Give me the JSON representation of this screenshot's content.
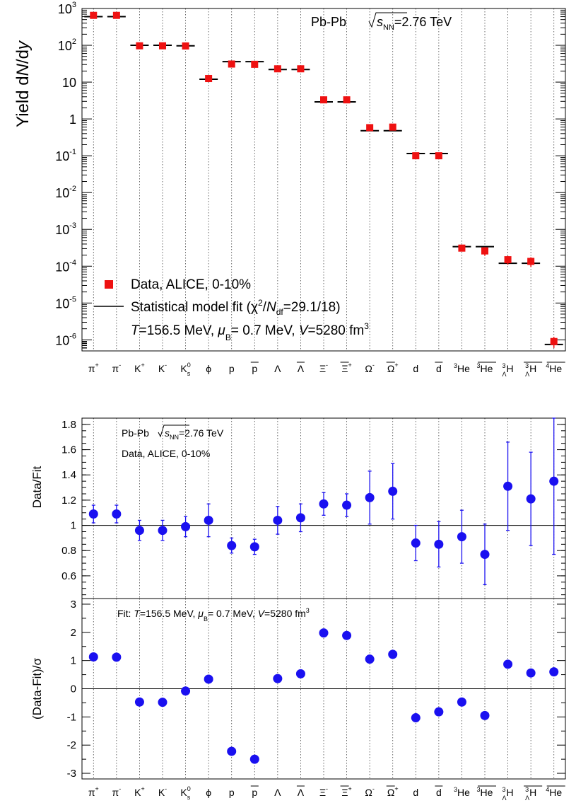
{
  "colors": {
    "data_red": "#ee1111",
    "data_blue": "#1a10f0",
    "axis": "#000000",
    "grid": "#444444"
  },
  "particles": [
    {
      "base": "π",
      "sup": "+",
      "bar": false
    },
    {
      "base": "π",
      "sup": "-",
      "bar": false
    },
    {
      "base": "K",
      "sup": "+",
      "bar": false
    },
    {
      "base": "K",
      "sup": "-",
      "bar": false
    },
    {
      "base": "K",
      "sub": "s",
      "sup": "0",
      "bar": false
    },
    {
      "base": "ϕ",
      "bar": false
    },
    {
      "base": "p",
      "bar": false
    },
    {
      "base": "p",
      "bar": true
    },
    {
      "base": "Λ",
      "bar": false
    },
    {
      "base": "Λ",
      "bar": true
    },
    {
      "base": "Ξ",
      "sup": "-",
      "bar": false
    },
    {
      "base": "Ξ",
      "sup": "+",
      "bar": true
    },
    {
      "base": "Ω",
      "sup": "-",
      "bar": false
    },
    {
      "base": "Ω",
      "sup": "+",
      "bar": true
    },
    {
      "base": "d",
      "bar": false
    },
    {
      "base": "d",
      "bar": true
    },
    {
      "pre": "3",
      "base": "He",
      "bar": false
    },
    {
      "pre": "3",
      "base": "He",
      "bar": true
    },
    {
      "pre": "3",
      "presub": "Λ",
      "base": "H",
      "bar": false
    },
    {
      "pre": "3",
      "presub": "Λ",
      "base": "H",
      "bar": true
    },
    {
      "pre": "4",
      "base": "He",
      "bar": true
    }
  ],
  "chart_data": [
    {
      "type": "scatter",
      "panel": "yield",
      "ylabel": "Yield dN/dy",
      "yscale": "log",
      "ylim": [
        5e-07,
        1000
      ],
      "yticks": [
        "10^3",
        "10^2",
        "10",
        "1",
        "10^-1",
        "10^-2",
        "10^-3",
        "10^-4",
        "10^-5",
        "10^-6"
      ],
      "annotation": "Pb-Pb √sNN=2.76 TeV",
      "legend": {
        "placement": "bottom-left",
        "data_label": "Data, ALICE, 0-10%",
        "fit_label": "Statistical model fit (χ2/Ndf=29.1/18)",
        "params_label": "T=156.5 MeV, μB= 0.7 MeV, V=5280 fm3"
      },
      "data": [
        650,
        650,
        97,
        97,
        96,
        12.5,
        31,
        30.5,
        23,
        23,
        3.3,
        3.3,
        0.58,
        0.6,
        0.1,
        0.1,
        0.00031,
        0.00026,
        0.00015,
        0.000135,
        9e-07
      ],
      "data_err_lo": [
        50,
        50,
        8,
        8,
        8,
        1.5,
        3,
        3,
        2.5,
        2.5,
        0.3,
        0.3,
        0.06,
        0.07,
        0.015,
        0.015,
        6e-05,
        7e-05,
        4e-05,
        4e-05,
        3e-07
      ],
      "data_err_hi": [
        50,
        50,
        8,
        8,
        8,
        1.5,
        3,
        3,
        2.5,
        2.5,
        0.3,
        0.3,
        0.06,
        0.07,
        0.015,
        0.015,
        6e-05,
        7e-05,
        4e-05,
        4e-05,
        3e-07
      ],
      "fit": [
        600,
        600,
        100,
        100,
        97,
        12,
        36,
        36,
        22,
        22,
        2.9,
        2.9,
        0.48,
        0.48,
        0.115,
        0.115,
        0.00034,
        0.00034,
        0.00012,
        0.00012,
        7.5e-07
      ]
    },
    {
      "type": "scatter",
      "panel": "ratio",
      "ylabel": "Data/Fit",
      "ylim": [
        0.42,
        1.85
      ],
      "yticks": [
        0.6,
        0.8,
        1,
        1.2,
        1.4,
        1.6,
        1.8
      ],
      "reference_line": 1,
      "annotation_1": "Pb-Pb √sNN=2.76 TeV",
      "annotation_2": "Data, ALICE, 0-10%",
      "values": [
        1.09,
        1.09,
        0.96,
        0.96,
        0.99,
        1.04,
        0.84,
        0.83,
        1.04,
        1.06,
        1.17,
        1.16,
        1.22,
        1.27,
        0.86,
        0.85,
        0.91,
        0.77,
        1.31,
        1.21,
        1.35
      ],
      "errors": [
        0.07,
        0.07,
        0.08,
        0.08,
        0.08,
        0.13,
        0.06,
        0.06,
        0.11,
        0.11,
        0.09,
        0.09,
        0.21,
        0.22,
        0.14,
        0.18,
        0.21,
        0.24,
        0.35,
        0.37,
        0.58
      ]
    },
    {
      "type": "scatter",
      "panel": "deviation",
      "ylabel": "(Data-Fit)/σ",
      "ylim": [
        -3.2,
        3.2
      ],
      "yticks": [
        -3,
        -2,
        -1,
        0,
        1,
        2,
        3
      ],
      "reference_line": 0,
      "annotation": "Fit: T=156.5 MeV, μB= 0.7 MeV, V=5280 fm3",
      "values": [
        1.13,
        1.12,
        -0.47,
        -0.48,
        -0.08,
        0.34,
        -2.22,
        -2.5,
        0.36,
        0.53,
        1.98,
        1.89,
        1.05,
        1.22,
        -1.03,
        -0.82,
        -0.47,
        -0.95,
        0.87,
        0.56,
        0.6
      ]
    }
  ]
}
